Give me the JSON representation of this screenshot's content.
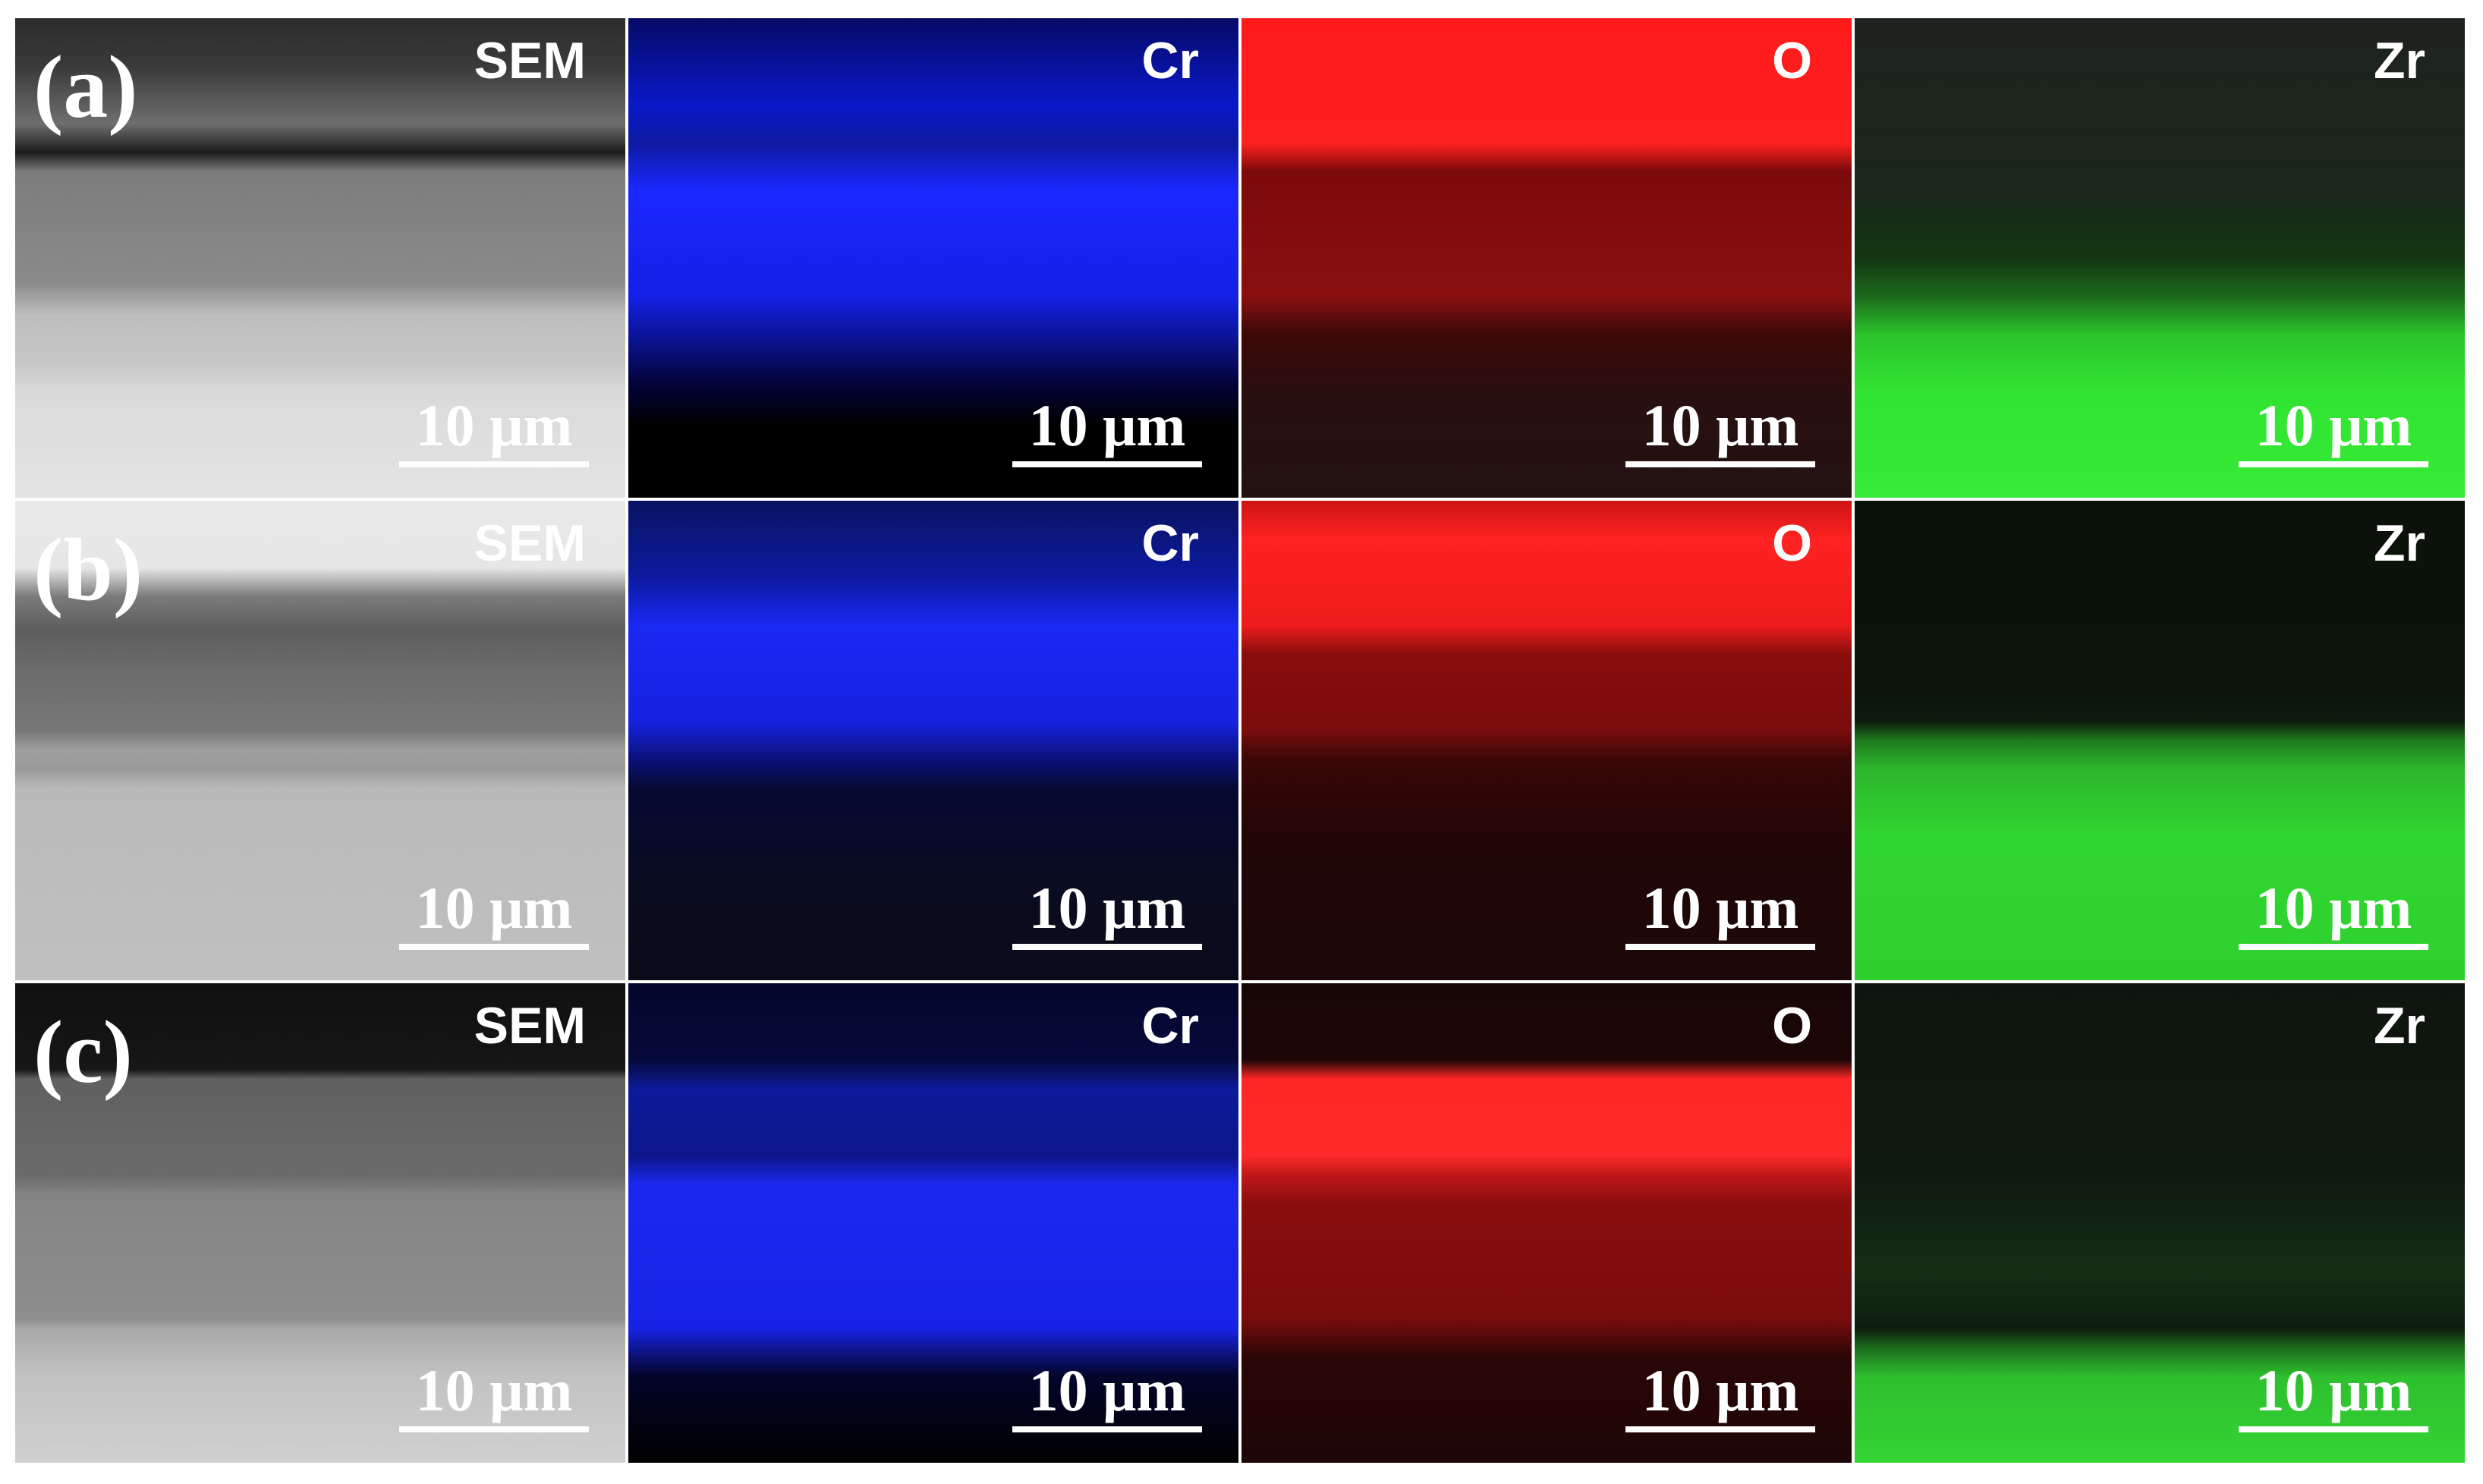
{
  "figure": {
    "rows": [
      {
        "label": "(a)",
        "panels": [
          {
            "title": "SEM",
            "scale": "10 μm",
            "type": "sem",
            "bg": "linear-gradient(180deg,#2c2c2c 0%,#3a3a3a 10%,#6e6e6e 22%,#1c1c1c 28%,#7c7c7c 32%,#8a8a8a 55%,#bdbdbd 62%,#c7c7c7 72%,#dadada 78%,#e4e4e4 100%)"
          },
          {
            "title": "Cr",
            "scale": "10 μm",
            "type": "cr",
            "bg": "linear-gradient(180deg,#050a66 0%,#0a18c8 18%,#0d1aa0 26%,#1b28ff 36%,#1420e6 58%,#0a1288 68%,#02033a 76%,#000000 85%,#000000 100%)"
          },
          {
            "title": "O",
            "scale": "10 μm",
            "type": "o",
            "bg": "linear-gradient(180deg,#ff1a1a 0%,#ff2020 26%,#7c0a0a 32%,#8a1010 58%,#3c0808 66%,#281010 80%,#241212 100%)"
          },
          {
            "title": "Zr",
            "scale": "10 μm",
            "type": "zr",
            "bg": "linear-gradient(180deg,#1e221e 0%,#1a261a 36%,#123612 50%,#1c6a1c 58%,#2bc42b 66%,#32e432 78%,#36ea36 100%)"
          }
        ]
      },
      {
        "label": "(b)",
        "panels": [
          {
            "title": "SEM",
            "scale": "10 μm",
            "type": "sem",
            "bg": "linear-gradient(180deg,#e9e9e9 0%,#e6e6e6 14%,#7a7a7a 20%,#5e5e5e 27%,#6c6c6c 36%,#777777 48%,#9e9e9e 52%,#9a9a9a 56%,#b9b9b9 60%,#c0c0c0 100%)"
          },
          {
            "title": "Cr",
            "scale": "10 μm",
            "type": "cr",
            "bg": "linear-gradient(180deg,#0a1360 0%,#0c1aa0 16%,#1a28f4 26%,#1722e0 46%,#0a117a 54%,#060a32 60%,#0a0c20 80%,#0a0b1a 100%)"
          },
          {
            "title": "O",
            "scale": "10 μm",
            "type": "o",
            "bg": "linear-gradient(180deg,#cc1414 0%,#ff2222 8%,#ee1c1c 26%,#8a0d0d 32%,#7a0c0c 48%,#3a0707 54%,#220606 70%,#1c0808 100%)"
          },
          {
            "title": "Zr",
            "scale": "10 μm",
            "type": "zr",
            "bg": "linear-gradient(180deg,#0a120a 0%,#0a140a 40%,#0e1c0e 46%,#1e7a1e 50%,#2bb72b 56%,#30d630 70%,#2ed02e 100%)"
          }
        ]
      },
      {
        "label": "(c)",
        "panels": [
          {
            "title": "SEM",
            "scale": "10 μm",
            "type": "sem",
            "bg": "linear-gradient(180deg,#101010 0%,#161616 18%,#606060 20%,#6a6a6a 40%,#848484 44%,#8e8e8e 70%,#a8a8a8 72%,#c2c2c2 82%,#d0d0d0 100%)"
          },
          {
            "title": "Cr",
            "scale": "10 μm",
            "type": "cr",
            "bg": "linear-gradient(180deg,#04062a 0%,#060a3a 16%,#0d1a9a 22%,#0d168a 36%,#1a28ee 42%,#1823e6 72%,#0b1070 78%,#03052a 82%,#000000 100%)"
          },
          {
            "title": "O",
            "scale": "10 μm",
            "type": "o",
            "bg": "linear-gradient(180deg,#180606 0%,#1c0606 16%,#ff2626 20%,#ff2a2a 36%,#c01818 40%,#8a0e0e 46%,#7a0c0c 70%,#2a0606 78%,#1e0606 100%)"
          },
          {
            "title": "Zr",
            "scale": "10 μm",
            "type": "zr",
            "bg": "linear-gradient(180deg,#0e150e 0%,#0f1a0f 40%,#142c14 60%,#0e1e0e 72%,#1b6a1b 76%,#2ebf2e 82%,#34d434 100%)"
          }
        ]
      }
    ]
  }
}
